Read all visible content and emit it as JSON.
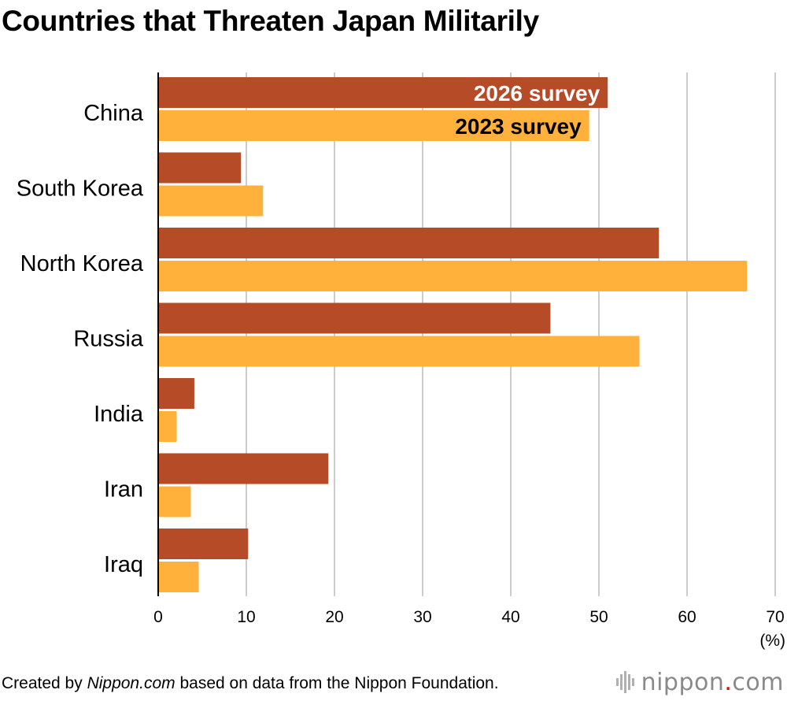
{
  "title": "Countries that Threaten Japan Militarily",
  "footer": {
    "prefix": "Created by ",
    "source_name": "Nippon.com",
    "suffix": " based on data from the Nippon Foundation."
  },
  "logo": {
    "name": "nippon",
    "dot": ".",
    "tld": "com"
  },
  "colors": {
    "series_2026": "#b54b27",
    "series_2023": "#ffb13b",
    "grid": "#cccccc",
    "axis": "#000000"
  },
  "chart_data": {
    "type": "bar",
    "orientation": "horizontal",
    "categories": [
      "China",
      "South Korea",
      "North Korea",
      "Russia",
      "India",
      "Iran",
      "Iraq"
    ],
    "series": [
      {
        "name": "2026 survey",
        "values": [
          51.0,
          9.4,
          56.8,
          44.5,
          4.1,
          19.3,
          10.2
        ]
      },
      {
        "name": "2023 survey",
        "values": [
          48.9,
          11.9,
          66.8,
          54.6,
          2.1,
          3.7,
          4.6
        ]
      }
    ],
    "xlim": [
      0,
      70
    ],
    "xticks": [
      "0",
      "10",
      "20",
      "30",
      "40",
      "50",
      "60",
      "70"
    ],
    "xunit": "(%)",
    "grid": true,
    "legend": "inline labels on first category bars"
  }
}
